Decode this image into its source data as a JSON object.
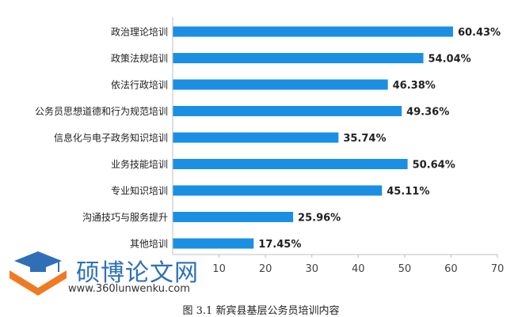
{
  "chart_data": {
    "type": "bar",
    "orientation": "horizontal",
    "categories": [
      "政治理论培训",
      "政策法规培训",
      "依法行政培训",
      "公务员思想道德和行为规范培训",
      "信息化与电子政务知识培训",
      "业务技能培训",
      "专业知识培训",
      "沟通技巧与服务提升",
      "其他培训"
    ],
    "values": [
      60.43,
      54.04,
      46.38,
      49.36,
      35.74,
      50.64,
      45.11,
      25.96,
      17.45
    ],
    "data_labels": [
      "60.43%",
      "54.04%",
      "46.38%",
      "49.36%",
      "35.74%",
      "50.64%",
      "45.11%",
      "25.96%",
      "17.45%"
    ],
    "xticks": [
      "10",
      "20",
      "30",
      "40",
      "50",
      "60",
      "70"
    ],
    "xlim": [
      0,
      70
    ],
    "bar_color": "#1a8fe3",
    "grid": false
  },
  "caption": "图 3.1  新宾县基层公务员培训内容",
  "watermark": {
    "text": "硕博论文网",
    "url": "www.360lunwenku.com",
    "color": "#2f6fb8",
    "accent": "#f07a22"
  }
}
